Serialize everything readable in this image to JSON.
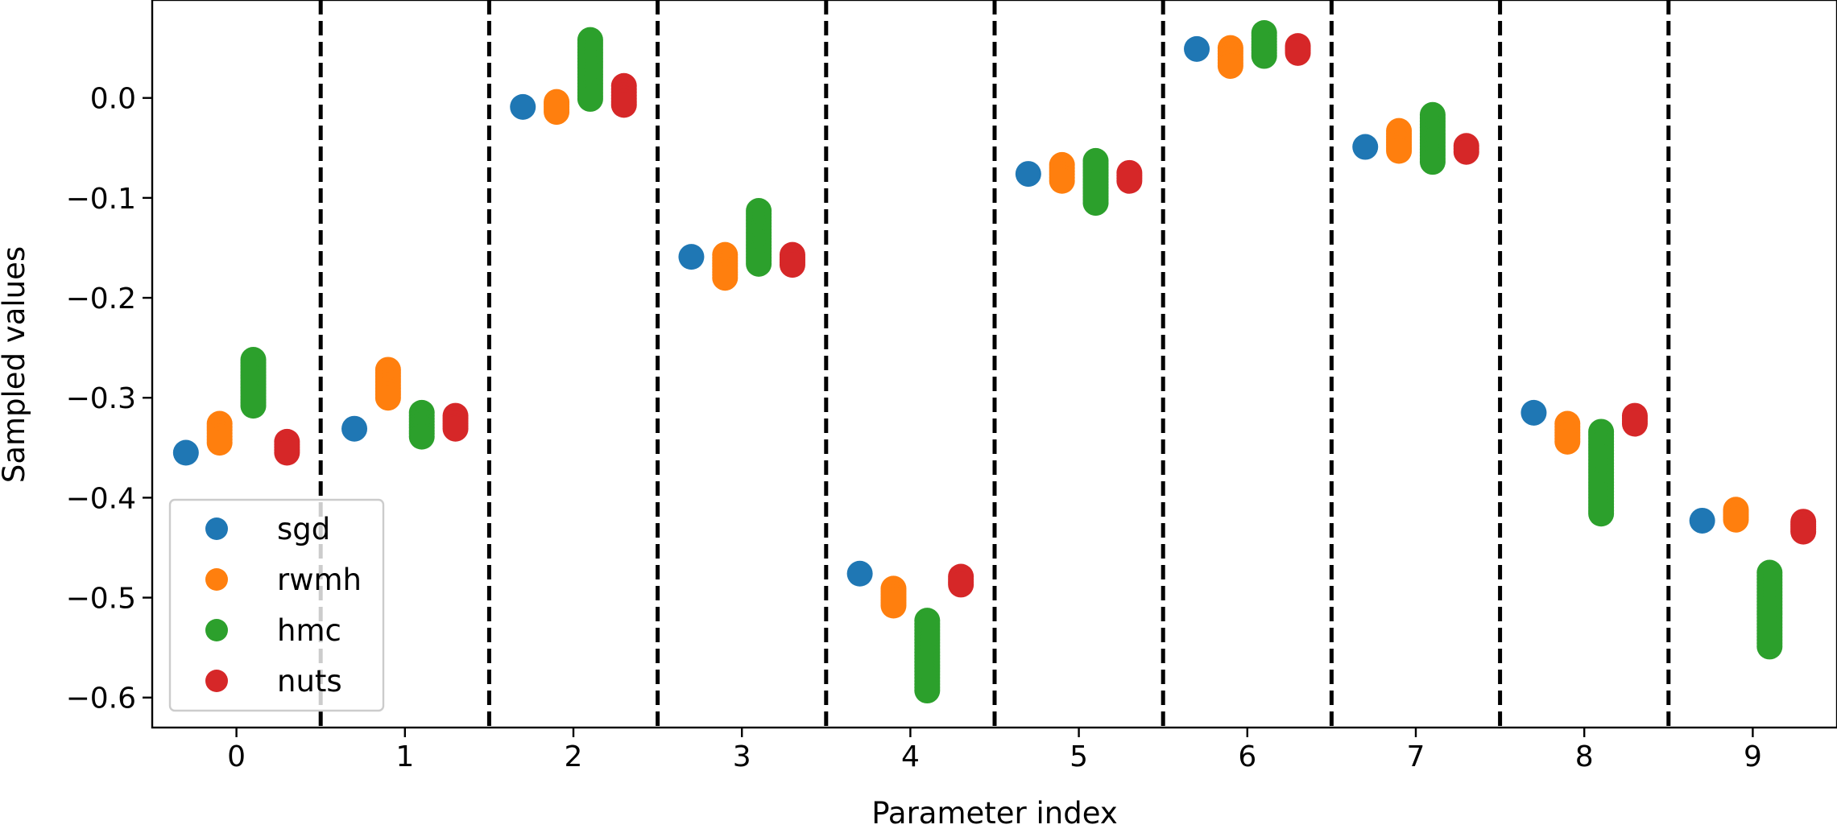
{
  "chart_data": {
    "type": "scatter",
    "title": "",
    "xlabel": "Parameter index",
    "ylabel": "Sampled values",
    "xlim": [
      -0.5,
      9.5
    ],
    "ylim": [
      -0.63,
      0.098
    ],
    "x_ticks": [
      "0",
      "1",
      "2",
      "3",
      "4",
      "5",
      "6",
      "7",
      "8",
      "9"
    ],
    "y_ticks": [
      {
        "value": 0.0,
        "label": "0.0"
      },
      {
        "value": -0.1,
        "label": "−0.1"
      },
      {
        "value": -0.2,
        "label": "−0.2"
      },
      {
        "value": -0.3,
        "label": "−0.3"
      },
      {
        "value": -0.4,
        "label": "−0.4"
      },
      {
        "value": -0.5,
        "label": "−0.5"
      },
      {
        "value": -0.6,
        "label": "−0.6"
      }
    ],
    "separators_at": [
      0.5,
      1.5,
      2.5,
      3.5,
      4.5,
      5.5,
      6.5,
      7.5,
      8.5
    ],
    "series_offset": [
      -0.3,
      -0.1,
      0.1,
      0.3
    ],
    "legend_position": "lower-left",
    "grid": false,
    "series": [
      {
        "name": "sgd",
        "color": "#1f77b4",
        "ranges": [
          [
            -0.355,
            -0.355
          ],
          [
            -0.331,
            -0.331
          ],
          [
            -0.009,
            -0.009
          ],
          [
            -0.159,
            -0.159
          ],
          [
            -0.476,
            -0.476
          ],
          [
            -0.076,
            -0.076
          ],
          [
            0.049,
            0.049
          ],
          [
            -0.049,
            -0.049
          ],
          [
            -0.315,
            -0.315
          ],
          [
            -0.423,
            -0.423
          ]
        ]
      },
      {
        "name": "rwmh",
        "color": "#ff7f0e",
        "ranges": [
          [
            -0.345,
            -0.326
          ],
          [
            -0.3,
            -0.272
          ],
          [
            -0.014,
            -0.004
          ],
          [
            -0.18,
            -0.157
          ],
          [
            -0.508,
            -0.491
          ],
          [
            -0.083,
            -0.067
          ],
          [
            0.032,
            0.05
          ],
          [
            -0.053,
            -0.033
          ],
          [
            -0.344,
            -0.326
          ],
          [
            -0.422,
            -0.412
          ]
        ]
      },
      {
        "name": "hmc",
        "color": "#2ca02c",
        "ranges": [
          [
            -0.308,
            -0.262
          ],
          [
            -0.339,
            -0.315
          ],
          [
            -0.001,
            0.058
          ],
          [
            -0.166,
            -0.113
          ],
          [
            -0.593,
            -0.523
          ],
          [
            -0.105,
            -0.063
          ],
          [
            0.042,
            0.065
          ],
          [
            -0.064,
            -0.017
          ],
          [
            -0.416,
            -0.334
          ],
          [
            -0.549,
            -0.475
          ]
        ]
      },
      {
        "name": "nuts",
        "color": "#d62728",
        "ranges": [
          [
            -0.355,
            -0.344
          ],
          [
            -0.331,
            -0.318
          ],
          [
            -0.007,
            0.012
          ],
          [
            -0.167,
            -0.157
          ],
          [
            -0.487,
            -0.479
          ],
          [
            -0.083,
            -0.075
          ],
          [
            0.045,
            0.052
          ],
          [
            -0.054,
            -0.048
          ],
          [
            -0.326,
            -0.318
          ],
          [
            -0.434,
            -0.424
          ]
        ]
      }
    ]
  }
}
